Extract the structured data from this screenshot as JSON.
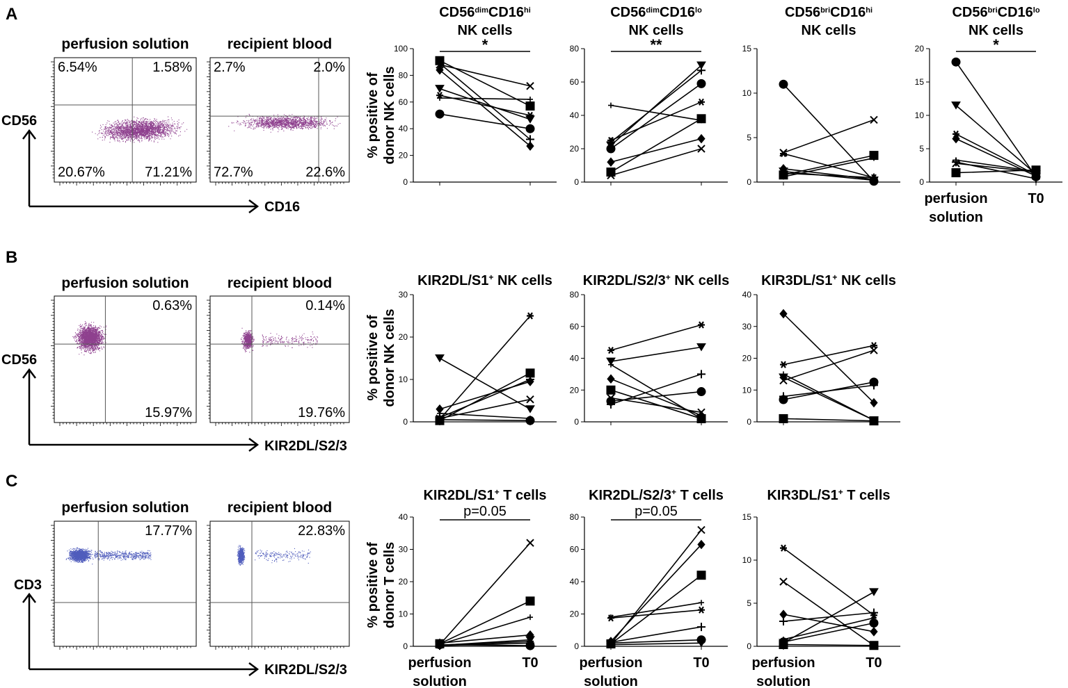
{
  "colors": {
    "ink": "#000000",
    "purple": "#7a1f7a",
    "blue": "#3040b0"
  },
  "panels": [
    {
      "label": "A",
      "flow": {
        "y_marker": "CD56",
        "x_marker": "CD16",
        "plots": [
          {
            "title": "perfusion solution",
            "quadrants": [
              "6.54%",
              "1.58%",
              "20.67%",
              "71.21%"
            ],
            "cloud": "A-perf"
          },
          {
            "title": "recipient blood",
            "quadrants": [
              "2.7%",
              "2.0%",
              "72.7%",
              "22.6%"
            ],
            "cloud": "A-rec"
          }
        ]
      },
      "ylabel": [
        "% positive of",
        "donor NK cells"
      ],
      "xcategories": [],
      "chart_data": [
        {
          "type": "line",
          "title_html": "CD56<tspan baseline-shift='super' font-size='11'>dim</tspan>CD16<tspan baseline-shift='super' font-size='11'>hi</tspan>",
          "title2": "NK cells",
          "ylim": [
            0,
            100
          ],
          "yticks": [
            0,
            20,
            40,
            60,
            80,
            100
          ],
          "sig": "*",
          "series": [
            {
              "marker": "circle",
              "values": [
                51,
                40
              ]
            },
            {
              "marker": "square",
              "values": [
                91,
                57
              ]
            },
            {
              "marker": "diamond",
              "values": [
                84,
                27
              ]
            },
            {
              "marker": "triangle",
              "values": [
                70,
                47
              ]
            },
            {
              "marker": "plus",
              "values": [
                89,
                32
              ]
            },
            {
              "marker": "x",
              "values": [
                88,
                72
              ]
            },
            {
              "marker": "asterisk",
              "values": [
                65,
                50
              ]
            },
            {
              "marker": "star",
              "values": [
                63,
                62
              ]
            }
          ]
        },
        {
          "type": "line",
          "title_html": "CD56<tspan baseline-shift='super' font-size='11'>dim</tspan>CD16<tspan baseline-shift='super' font-size='11'>lo</tspan>",
          "title2": "NK cells",
          "ylim": [
            0,
            80
          ],
          "yticks": [
            0,
            20,
            40,
            60,
            80
          ],
          "sig": "**",
          "series": [
            {
              "marker": "circle",
              "values": [
                20,
                59
              ]
            },
            {
              "marker": "square",
              "values": [
                6,
                38
              ]
            },
            {
              "marker": "diamond",
              "values": [
                12,
                26
              ]
            },
            {
              "marker": "triangle",
              "values": [
                22,
                70
              ]
            },
            {
              "marker": "plus",
              "values": [
                24,
                67
              ]
            },
            {
              "marker": "x",
              "values": [
                4,
                20
              ]
            },
            {
              "marker": "asterisk",
              "values": [
                25,
                48
              ]
            },
            {
              "marker": "star",
              "values": [
                46,
                37
              ]
            }
          ]
        },
        {
          "type": "line",
          "title_html": "CD56<tspan baseline-shift='super' font-size='11'>bri</tspan>CD16<tspan baseline-shift='super' font-size='11'>hi</tspan>",
          "title2": "NK cells",
          "ylim": [
            0,
            15
          ],
          "yticks": [
            0,
            5,
            10,
            15
          ],
          "sig": "",
          "series": [
            {
              "marker": "circle",
              "values": [
                11,
                0.1
              ]
            },
            {
              "marker": "square",
              "values": [
                0.8,
                3
              ]
            },
            {
              "marker": "diamond",
              "values": [
                1.5,
                0.3
              ]
            },
            {
              "marker": "triangle",
              "values": [
                1.2,
                0.2
              ]
            },
            {
              "marker": "plus",
              "values": [
                1,
                0.5
              ]
            },
            {
              "marker": "x",
              "values": [
                3.3,
                7
              ]
            },
            {
              "marker": "asterisk",
              "values": [
                3.2,
                0.5
              ]
            },
            {
              "marker": "star",
              "values": [
                0.6,
                2.7
              ]
            }
          ]
        },
        {
          "type": "line",
          "title_html": "CD56<tspan baseline-shift='super' font-size='11'>bri</tspan>CD16<tspan baseline-shift='super' font-size='11'>lo</tspan>",
          "title2": "NK cells",
          "ylim": [
            0,
            20
          ],
          "yticks": [
            0,
            5,
            10,
            15,
            20
          ],
          "sig": "*",
          "series": [
            {
              "marker": "circle",
              "values": [
                18,
                0.8
              ]
            },
            {
              "marker": "square",
              "values": [
                1.4,
                1.8
              ]
            },
            {
              "marker": "diamond",
              "values": [
                6.5,
                0.9
              ]
            },
            {
              "marker": "triangle",
              "values": [
                11.5,
                1.2
              ]
            },
            {
              "marker": "plus",
              "values": [
                3,
                0.5
              ]
            },
            {
              "marker": "x",
              "values": [
                2.8,
                1.5
              ]
            },
            {
              "marker": "asterisk",
              "values": [
                7.2,
                1.1
              ]
            },
            {
              "marker": "star",
              "values": [
                3.3,
                1.6
              ]
            }
          ]
        }
      ]
    },
    {
      "label": "B",
      "flow": {
        "y_marker": "CD56",
        "x_marker": "KIR2DL/S2/3",
        "plots": [
          {
            "title": "perfusion solution",
            "quadrants": [
              "",
              "0.63%",
              "",
              "15.97%"
            ],
            "cloud": "B-perf"
          },
          {
            "title": "recipient blood",
            "quadrants": [
              "",
              "0.14%",
              "",
              "19.76%"
            ],
            "cloud": "B-rec"
          }
        ]
      },
      "ylabel": [
        "% positive of",
        "donor NK cells"
      ],
      "xcategories": [],
      "chart_data": [
        {
          "type": "line",
          "title_html": "KIR2DL/S1<tspan baseline-shift='super' font-size='12'>+</tspan> NK cells",
          "title2": "",
          "ylim": [
            0,
            30
          ],
          "yticks": [
            0,
            10,
            20,
            30
          ],
          "sig": "",
          "series": [
            {
              "marker": "circle",
              "values": [
                0.5,
                0.3
              ]
            },
            {
              "marker": "square",
              "values": [
                0.3,
                11.5
              ]
            },
            {
              "marker": "diamond",
              "values": [
                3,
                9.5
              ]
            },
            {
              "marker": "triangle",
              "values": [
                15,
                3
              ]
            },
            {
              "marker": "plus",
              "values": [
                1,
                10
              ]
            },
            {
              "marker": "x",
              "values": [
                0.8,
                5.3
              ]
            },
            {
              "marker": "asterisk",
              "values": [
                0.6,
                25
              ]
            },
            {
              "marker": "star",
              "values": [
                2,
                0.8
              ]
            }
          ]
        },
        {
          "type": "line",
          "title_html": "KIR2DL/S2/3<tspan baseline-shift='super' font-size='12'>+</tspan> NK cells",
          "title2": "",
          "ylim": [
            0,
            80
          ],
          "yticks": [
            0,
            20,
            40,
            60,
            80
          ],
          "sig": "",
          "series": [
            {
              "marker": "circle",
              "values": [
                13,
                19
              ]
            },
            {
              "marker": "square",
              "values": [
                20,
                2
              ]
            },
            {
              "marker": "diamond",
              "values": [
                27,
                4
              ]
            },
            {
              "marker": "triangle",
              "values": [
                38,
                47
              ]
            },
            {
              "marker": "plus",
              "values": [
                11,
                30
              ]
            },
            {
              "marker": "x",
              "values": [
                15,
                6
              ]
            },
            {
              "marker": "asterisk",
              "values": [
                45,
                61
              ]
            },
            {
              "marker": "star",
              "values": [
                36,
                2
              ]
            }
          ]
        },
        {
          "type": "line",
          "title_html": "KIR3DL/S1<tspan baseline-shift='super' font-size='12'>+</tspan> NK cells",
          "title2": "",
          "ylim": [
            0,
            40
          ],
          "yticks": [
            0,
            10,
            20,
            30,
            40
          ],
          "sig": "",
          "series": [
            {
              "marker": "circle",
              "values": [
                7,
                12.5
              ]
            },
            {
              "marker": "square",
              "values": [
                1,
                0.3
              ]
            },
            {
              "marker": "diamond",
              "values": [
                34,
                6
              ]
            },
            {
              "marker": "triangle",
              "values": [
                14,
                0.5
              ]
            },
            {
              "marker": "plus",
              "values": [
                8,
                11.5
              ]
            },
            {
              "marker": "x",
              "values": [
                13,
                22.5
              ]
            },
            {
              "marker": "asterisk",
              "values": [
                18,
                24
              ]
            },
            {
              "marker": "star",
              "values": [
                15,
                0.5
              ]
            }
          ]
        }
      ]
    },
    {
      "label": "C",
      "flow": {
        "y_marker": "CD3",
        "x_marker": "KIR2DL/S2/3",
        "plots": [
          {
            "title": "perfusion solution",
            "quadrants": [
              "",
              "17.77%",
              "",
              ""
            ],
            "cloud": "C-perf"
          },
          {
            "title": "recipient blood",
            "quadrants": [
              "",
              "22.83%",
              "",
              ""
            ],
            "cloud": "C-rec"
          }
        ]
      },
      "ylabel": [
        "% positive of",
        "donor T cells"
      ],
      "xcategories": [
        "perfusion|solution",
        "T0"
      ],
      "chart_data": [
        {
          "type": "line",
          "title_html": "KIR2DL/S1<tspan baseline-shift='super' font-size='12'>+</tspan> T cells",
          "title2": "",
          "ylim": [
            0,
            40
          ],
          "yticks": [
            0,
            10,
            20,
            30,
            40
          ],
          "sig": "p=0.05",
          "series": [
            {
              "marker": "circle",
              "values": [
                0.5,
                0.2
              ]
            },
            {
              "marker": "square",
              "values": [
                0.8,
                14
              ]
            },
            {
              "marker": "diamond",
              "values": [
                1,
                3.5
              ]
            },
            {
              "marker": "triangle",
              "values": [
                0.3,
                2
              ]
            },
            {
              "marker": "plus",
              "values": [
                0.2,
                1
              ]
            },
            {
              "marker": "x",
              "values": [
                0.5,
                32
              ]
            },
            {
              "marker": "asterisk",
              "values": [
                0.4,
                1.5
              ]
            },
            {
              "marker": "star",
              "values": [
                0.6,
                9
              ]
            }
          ]
        },
        {
          "type": "line",
          "title_html": "KIR2DL/S2/3<tspan baseline-shift='super' font-size='12'>+</tspan> T cells",
          "title2": "",
          "ylim": [
            0,
            80
          ],
          "yticks": [
            0,
            20,
            40,
            60,
            80
          ],
          "sig": "p=0.05",
          "series": [
            {
              "marker": "circle",
              "values": [
                2,
                4
              ]
            },
            {
              "marker": "square",
              "values": [
                1.5,
                44
              ]
            },
            {
              "marker": "diamond",
              "values": [
                3,
                63
              ]
            },
            {
              "marker": "triangle",
              "values": [
                1,
                2
              ]
            },
            {
              "marker": "plus",
              "values": [
                2.5,
                12
              ]
            },
            {
              "marker": "x",
              "values": [
                1.5,
                72
              ]
            },
            {
              "marker": "asterisk",
              "values": [
                17.5,
                22.5
              ]
            },
            {
              "marker": "star",
              "values": [
                18,
                27
              ]
            }
          ]
        },
        {
          "type": "line",
          "title_html": "KIR3DL/S1<tspan baseline-shift='super' font-size='12'>+</tspan> T cells",
          "title2": "",
          "ylim": [
            0,
            15
          ],
          "yticks": [
            0,
            5,
            10,
            15
          ],
          "sig": "",
          "series": [
            {
              "marker": "circle",
              "values": [
                0.5,
                2.7
              ]
            },
            {
              "marker": "square",
              "values": [
                0.2,
                0.1
              ]
            },
            {
              "marker": "diamond",
              "values": [
                3.7,
                1.7
              ]
            },
            {
              "marker": "triangle",
              "values": [
                0.4,
                6.3
              ]
            },
            {
              "marker": "plus",
              "values": [
                2.9,
                3.9
              ]
            },
            {
              "marker": "x",
              "values": [
                7.5,
                0.1
              ]
            },
            {
              "marker": "asterisk",
              "values": [
                11.4,
                3.6
              ]
            },
            {
              "marker": "star",
              "values": [
                0.8,
                3.3
              ]
            }
          ]
        }
      ]
    }
  ],
  "endpoint_labels": {
    "left": [
      "perfusion",
      "solution"
    ],
    "right": "T0"
  }
}
